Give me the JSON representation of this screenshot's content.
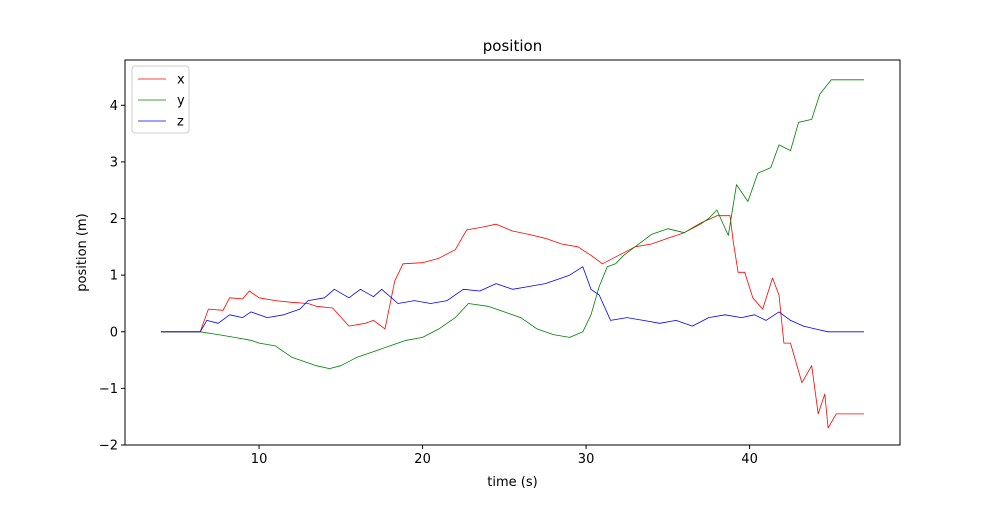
{
  "chart_data": {
    "type": "line",
    "title": "position",
    "xlabel": "time (s)",
    "ylabel": "position (m)",
    "xlim": [
      1.8,
      49.2
    ],
    "ylim": [
      -2.0,
      4.8
    ],
    "xticks": [
      10,
      20,
      30,
      40
    ],
    "yticks": [
      -2,
      -1,
      0,
      1,
      2,
      3,
      4
    ],
    "grid": false,
    "legend_position": "top-left",
    "series": [
      {
        "name": "x",
        "color": "#ff0000",
        "points": [
          [
            4.0,
            0.0
          ],
          [
            6.4,
            0.0
          ],
          [
            6.9,
            0.4
          ],
          [
            7.8,
            0.38
          ],
          [
            8.2,
            0.6
          ],
          [
            9.0,
            0.58
          ],
          [
            9.4,
            0.72
          ],
          [
            10.0,
            0.6
          ],
          [
            11.0,
            0.55
          ],
          [
            12.0,
            0.52
          ],
          [
            13.0,
            0.5
          ],
          [
            13.5,
            0.45
          ],
          [
            14.5,
            0.42
          ],
          [
            15.5,
            0.1
          ],
          [
            16.5,
            0.15
          ],
          [
            17.0,
            0.2
          ],
          [
            17.7,
            0.05
          ],
          [
            18.3,
            0.9
          ],
          [
            18.8,
            1.2
          ],
          [
            20.0,
            1.22
          ],
          [
            21.0,
            1.3
          ],
          [
            22.0,
            1.45
          ],
          [
            22.7,
            1.8
          ],
          [
            23.7,
            1.85
          ],
          [
            24.5,
            1.9
          ],
          [
            25.5,
            1.78
          ],
          [
            26.5,
            1.72
          ],
          [
            27.5,
            1.65
          ],
          [
            28.5,
            1.55
          ],
          [
            29.5,
            1.5
          ],
          [
            30.3,
            1.35
          ],
          [
            31.0,
            1.2
          ],
          [
            32.0,
            1.35
          ],
          [
            33.0,
            1.5
          ],
          [
            34.0,
            1.55
          ],
          [
            35.0,
            1.65
          ],
          [
            36.0,
            1.75
          ],
          [
            37.0,
            1.92
          ],
          [
            38.0,
            2.05
          ],
          [
            38.8,
            2.05
          ],
          [
            39.0,
            1.6
          ],
          [
            39.3,
            1.05
          ],
          [
            39.7,
            1.05
          ],
          [
            40.2,
            0.6
          ],
          [
            40.8,
            0.4
          ],
          [
            41.4,
            0.95
          ],
          [
            41.8,
            0.65
          ],
          [
            42.1,
            -0.2
          ],
          [
            42.5,
            -0.2
          ],
          [
            43.2,
            -0.9
          ],
          [
            43.8,
            -0.6
          ],
          [
            44.2,
            -1.45
          ],
          [
            44.6,
            -1.1
          ],
          [
            44.8,
            -1.7
          ],
          [
            45.3,
            -1.45
          ],
          [
            47.0,
            -1.45
          ]
        ]
      },
      {
        "name": "y",
        "color": "#008000",
        "points": [
          [
            4.0,
            0.0
          ],
          [
            6.4,
            0.0
          ],
          [
            7.5,
            -0.05
          ],
          [
            8.5,
            -0.1
          ],
          [
            9.5,
            -0.15
          ],
          [
            10.0,
            -0.2
          ],
          [
            11.0,
            -0.25
          ],
          [
            12.0,
            -0.45
          ],
          [
            13.0,
            -0.55
          ],
          [
            13.5,
            -0.6
          ],
          [
            14.3,
            -0.65
          ],
          [
            15.0,
            -0.6
          ],
          [
            16.0,
            -0.45
          ],
          [
            17.0,
            -0.35
          ],
          [
            18.0,
            -0.25
          ],
          [
            19.0,
            -0.15
          ],
          [
            20.0,
            -0.1
          ],
          [
            21.0,
            0.05
          ],
          [
            22.0,
            0.25
          ],
          [
            22.8,
            0.5
          ],
          [
            24.0,
            0.45
          ],
          [
            25.0,
            0.35
          ],
          [
            26.0,
            0.25
          ],
          [
            27.0,
            0.05
          ],
          [
            28.0,
            -0.05
          ],
          [
            29.0,
            -0.1
          ],
          [
            29.8,
            0.0
          ],
          [
            30.3,
            0.3
          ],
          [
            30.8,
            0.8
          ],
          [
            31.3,
            1.15
          ],
          [
            31.8,
            1.2
          ],
          [
            32.3,
            1.35
          ],
          [
            33.0,
            1.5
          ],
          [
            34.0,
            1.72
          ],
          [
            35.0,
            1.82
          ],
          [
            36.0,
            1.75
          ],
          [
            37.0,
            1.9
          ],
          [
            37.5,
            2.0
          ],
          [
            38.0,
            2.15
          ],
          [
            38.7,
            1.7
          ],
          [
            39.2,
            2.6
          ],
          [
            39.9,
            2.3
          ],
          [
            40.5,
            2.8
          ],
          [
            41.3,
            2.9
          ],
          [
            41.8,
            3.3
          ],
          [
            42.5,
            3.2
          ],
          [
            43.0,
            3.7
          ],
          [
            43.8,
            3.75
          ],
          [
            44.3,
            4.2
          ],
          [
            45.0,
            4.45
          ],
          [
            47.0,
            4.45
          ]
        ]
      },
      {
        "name": "z",
        "color": "#0000ff",
        "points": [
          [
            4.0,
            0.0
          ],
          [
            6.4,
            0.0
          ],
          [
            6.8,
            0.2
          ],
          [
            7.5,
            0.15
          ],
          [
            8.2,
            0.3
          ],
          [
            9.0,
            0.25
          ],
          [
            9.5,
            0.35
          ],
          [
            10.5,
            0.25
          ],
          [
            11.5,
            0.3
          ],
          [
            12.5,
            0.4
          ],
          [
            13.0,
            0.55
          ],
          [
            14.0,
            0.6
          ],
          [
            14.6,
            0.75
          ],
          [
            15.5,
            0.6
          ],
          [
            16.2,
            0.75
          ],
          [
            17.0,
            0.62
          ],
          [
            17.5,
            0.75
          ],
          [
            18.5,
            0.5
          ],
          [
            19.5,
            0.55
          ],
          [
            20.5,
            0.5
          ],
          [
            21.5,
            0.55
          ],
          [
            22.5,
            0.75
          ],
          [
            23.5,
            0.72
          ],
          [
            24.5,
            0.85
          ],
          [
            25.5,
            0.75
          ],
          [
            26.5,
            0.8
          ],
          [
            27.5,
            0.85
          ],
          [
            28.5,
            0.95
          ],
          [
            29.0,
            1.0
          ],
          [
            29.8,
            1.15
          ],
          [
            30.3,
            0.75
          ],
          [
            30.8,
            0.65
          ],
          [
            31.5,
            0.2
          ],
          [
            32.5,
            0.25
          ],
          [
            33.5,
            0.2
          ],
          [
            34.5,
            0.15
          ],
          [
            35.5,
            0.2
          ],
          [
            36.5,
            0.1
          ],
          [
            37.5,
            0.25
          ],
          [
            38.5,
            0.3
          ],
          [
            39.5,
            0.25
          ],
          [
            40.3,
            0.3
          ],
          [
            41.0,
            0.2
          ],
          [
            41.8,
            0.35
          ],
          [
            42.5,
            0.2
          ],
          [
            43.3,
            0.1
          ],
          [
            44.0,
            0.05
          ],
          [
            44.8,
            0.0
          ],
          [
            47.0,
            0.0
          ]
        ]
      }
    ]
  }
}
